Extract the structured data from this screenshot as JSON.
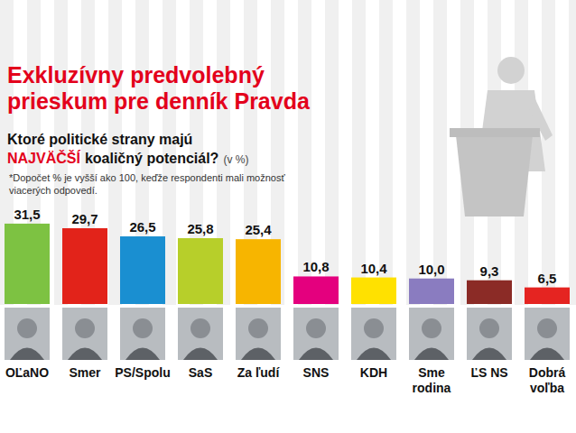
{
  "chart_data": {
    "type": "bar",
    "title": "Exkluzívny predvolebný prieskum pre denník Pravda",
    "subtitle": [
      "Ktoré politické strany majú",
      "NAJVÄČŠÍ",
      "koaličný potenciál?"
    ],
    "unit_label": "(v %)",
    "note": "*Dopočet % je vyšší ako 100, keďže respondenti mali možnosť viacerých odpovedí.",
    "categories": [
      "OĽaNO",
      "Smer",
      "PS/Spolu",
      "SaS",
      "Za ľudí",
      "SNS",
      "KDH",
      "Sme rodina",
      "ĽS NS",
      "Dobrá voľba"
    ],
    "values": [
      31.5,
      29.7,
      26.5,
      25.8,
      25.4,
      10.8,
      10.4,
      10.0,
      9.3,
      6.5
    ],
    "value_labels": [
      "31,5",
      "29,7",
      "26,5",
      "25,8",
      "25,4",
      "10,8",
      "10,4",
      "10,0",
      "9,3",
      "6,5"
    ],
    "colors": [
      "#7dc242",
      "#e2231a",
      "#1a8fd1",
      "#b7cf2a",
      "#f7b500",
      "#e4007e",
      "#ffe100",
      "#8a7cc0",
      "#8b2b26",
      "#e52421"
    ],
    "ylim": [
      0,
      35
    ],
    "data_labels": true,
    "tick_labels": false,
    "grid": false
  }
}
